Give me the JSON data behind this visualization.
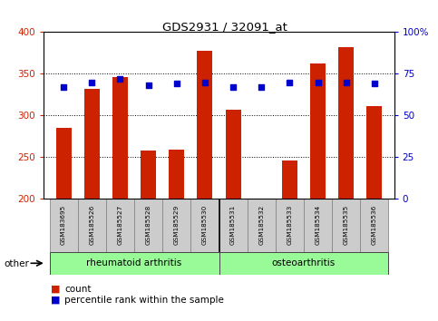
{
  "title": "GDS2931 / 32091_at",
  "samples": [
    "GSM183695",
    "GSM185526",
    "GSM185527",
    "GSM185528",
    "GSM185529",
    "GSM185530",
    "GSM185531",
    "GSM185532",
    "GSM185533",
    "GSM185534",
    "GSM185535",
    "GSM185536"
  ],
  "counts": [
    285,
    332,
    346,
    258,
    259,
    378,
    307,
    201,
    246,
    362,
    382,
    311
  ],
  "percentiles": [
    67,
    70,
    72,
    68,
    69,
    70,
    67,
    67,
    70,
    70,
    70,
    69
  ],
  "group1_label": "rheumatoid arthritis",
  "group2_label": "osteoarthritis",
  "group_color": "#98FB98",
  "group_split": 6,
  "ylim_left": [
    200,
    400
  ],
  "ylim_right": [
    0,
    100
  ],
  "yticks_left": [
    200,
    250,
    300,
    350,
    400
  ],
  "yticks_right": [
    0,
    25,
    50,
    75,
    100
  ],
  "bar_color": "#CC2200",
  "dot_color": "#0000CC",
  "bar_width": 0.55,
  "label_box_color": "#CCCCCC",
  "label_box_edge": "#888888"
}
